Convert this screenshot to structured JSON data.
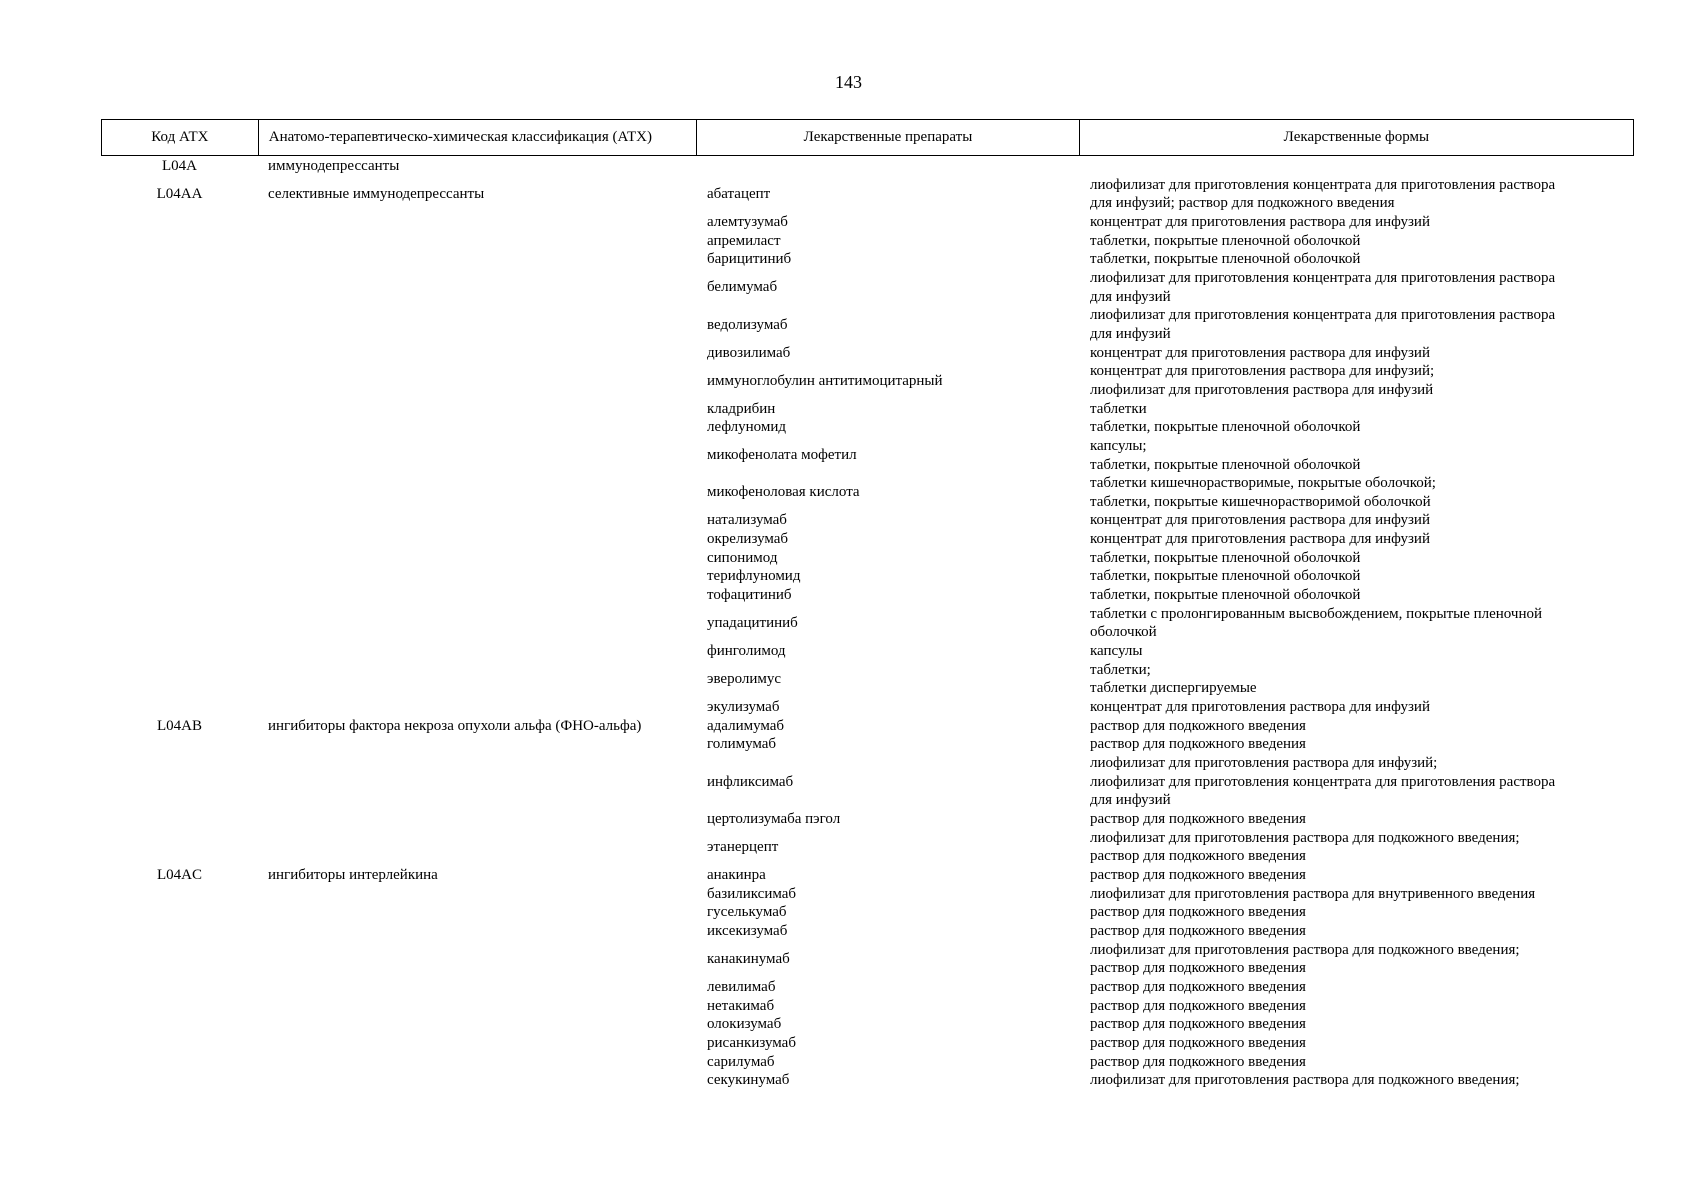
{
  "page_number": "143",
  "header": {
    "col1": "Код АТХ",
    "col2": "Анатомо-терапевтическо-химическая классификация (АТХ)",
    "col3": "Лекарственные препараты",
    "col4": "Лекарственные формы"
  },
  "rows": [
    {
      "code": "L04A",
      "class": "иммунодепрессанты",
      "drug": "",
      "forms": [
        ""
      ]
    },
    {
      "code": "L04AA",
      "class": "селективные иммунодепрессанты",
      "drug": "абатацепт",
      "forms": [
        "лиофилизат для приготовления концентрата для приготовления раствора",
        "для инфузий; раствор для подкожного введения"
      ]
    },
    {
      "code": "",
      "class": "",
      "drug": "алемтузумаб",
      "forms": [
        "концентрат для приготовления раствора для инфузий"
      ]
    },
    {
      "code": "",
      "class": "",
      "drug": "апремиласт",
      "forms": [
        "таблетки, покрытые пленочной оболочкой"
      ]
    },
    {
      "code": "",
      "class": "",
      "drug": "барицитиниб",
      "forms": [
        "таблетки, покрытые пленочной оболочкой"
      ]
    },
    {
      "code": "",
      "class": "",
      "drug": "белимумаб",
      "forms": [
        "лиофилизат для приготовления концентрата для приготовления раствора",
        "для инфузий"
      ]
    },
    {
      "code": "",
      "class": "",
      "drug": "ведолизумаб",
      "forms": [
        "лиофилизат для приготовления концентрата для приготовления раствора",
        "для инфузий"
      ]
    },
    {
      "code": "",
      "class": "",
      "drug": "дивозилимаб",
      "forms": [
        "концентрат для приготовления раствора для инфузий"
      ]
    },
    {
      "code": "",
      "class": "",
      "drug": "иммуноглобулин антитимоцитарный",
      "forms": [
        "концентрат для приготовления раствора для инфузий;",
        "лиофилизат для приготовления раствора для инфузий"
      ]
    },
    {
      "code": "",
      "class": "",
      "drug": "кладрибин",
      "forms": [
        "таблетки"
      ]
    },
    {
      "code": "",
      "class": "",
      "drug": "лефлуномид",
      "forms": [
        "таблетки, покрытые пленочной оболочкой"
      ]
    },
    {
      "code": "",
      "class": "",
      "drug": "микофенолата мофетил",
      "forms": [
        "капсулы;",
        "таблетки, покрытые пленочной оболочкой"
      ]
    },
    {
      "code": "",
      "class": "",
      "drug": "микофеноловая кислота",
      "forms": [
        "таблетки кишечнорастворимые, покрытые оболочкой;",
        "таблетки, покрытые кишечнорастворимой оболочкой"
      ]
    },
    {
      "code": "",
      "class": "",
      "drug": "натализумаб",
      "forms": [
        "концентрат для приготовления раствора для инфузий"
      ]
    },
    {
      "code": "",
      "class": "",
      "drug": "окрелизумаб",
      "forms": [
        "концентрат для приготовления раствора для инфузий"
      ]
    },
    {
      "code": "",
      "class": "",
      "drug": "сипонимод",
      "forms": [
        "таблетки, покрытые пленочной оболочкой"
      ]
    },
    {
      "code": "",
      "class": "",
      "drug": "терифлуномид",
      "forms": [
        "таблетки, покрытые пленочной оболочкой"
      ]
    },
    {
      "code": "",
      "class": "",
      "drug": "тофацитиниб",
      "forms": [
        "таблетки, покрытые пленочной оболочкой"
      ]
    },
    {
      "code": "",
      "class": "",
      "drug": "упадацитиниб",
      "forms": [
        "таблетки с пролонгированным высвобождением, покрытые пленочной",
        "оболочкой"
      ]
    },
    {
      "code": "",
      "class": "",
      "drug": "финголимод",
      "forms": [
        "капсулы"
      ]
    },
    {
      "code": "",
      "class": "",
      "drug": "эверолимус",
      "forms": [
        "таблетки;",
        "таблетки диспергируемые"
      ]
    },
    {
      "code": "",
      "class": "",
      "drug": "экулизумаб",
      "forms": [
        "концентрат для приготовления раствора для инфузий"
      ]
    },
    {
      "code": "L04AB",
      "class": "ингибиторы фактора некроза опухоли альфа (ФНО-альфа)",
      "drug": "адалимумаб",
      "forms": [
        "раствор для подкожного введения"
      ]
    },
    {
      "code": "",
      "class": "",
      "drug": "голимумаб",
      "forms": [
        "раствор для подкожного введения"
      ]
    },
    {
      "code": "",
      "class": "",
      "drug": "инфликсимаб",
      "forms": [
        "лиофилизат для приготовления раствора для инфузий;",
        "лиофилизат для приготовления концентрата для приготовления раствора",
        "для инфузий"
      ]
    },
    {
      "code": "",
      "class": "",
      "drug": "цертолизумаба пэгол",
      "forms": [
        "раствор для подкожного введения"
      ]
    },
    {
      "code": "",
      "class": "",
      "drug": "этанерцепт",
      "forms": [
        "лиофилизат для приготовления раствора для подкожного введения;",
        "раствор для подкожного введения"
      ]
    },
    {
      "code": "L04AC",
      "class": "ингибиторы интерлейкина",
      "drug": "анакинра",
      "forms": [
        "раствор для подкожного введения"
      ]
    },
    {
      "code": "",
      "class": "",
      "drug": "базиликсимаб",
      "forms": [
        "лиофилизат для приготовления раствора для внутривенного введения"
      ]
    },
    {
      "code": "",
      "class": "",
      "drug": "гуселькумаб",
      "forms": [
        "раствор для подкожного введения"
      ]
    },
    {
      "code": "",
      "class": "",
      "drug": "иксекизумаб",
      "forms": [
        "раствор для подкожного введения"
      ]
    },
    {
      "code": "",
      "class": "",
      "drug": "канакинумаб",
      "forms": [
        "лиофилизат для приготовления раствора для подкожного введения;",
        "раствор для подкожного введения"
      ]
    },
    {
      "code": "",
      "class": "",
      "drug": "левилимаб",
      "forms": [
        "раствор для подкожного введения"
      ]
    },
    {
      "code": "",
      "class": "",
      "drug": "нетакимаб",
      "forms": [
        "раствор для подкожного введения"
      ]
    },
    {
      "code": "",
      "class": "",
      "drug": "олокизумаб",
      "forms": [
        "раствор для подкожного введения"
      ]
    },
    {
      "code": "",
      "class": "",
      "drug": "рисанкизумаб",
      "forms": [
        "раствор для подкожного введения"
      ]
    },
    {
      "code": "",
      "class": "",
      "drug": "сарилумаб",
      "forms": [
        "раствор для подкожного введения"
      ]
    },
    {
      "code": "",
      "class": "",
      "drug": "секукинумаб",
      "forms": [
        "лиофилизат для приготовления раствора для подкожного введения;"
      ]
    }
  ]
}
